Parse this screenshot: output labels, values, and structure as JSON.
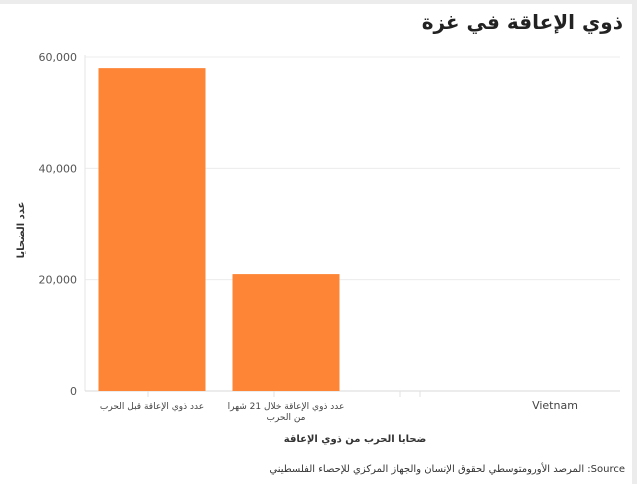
{
  "title": "ذوي الإعاقة في غزة",
  "source": "المرصد الأورومتوسطي لحقوق الإنسان والجهاز المركزي للإحصاء الفلسطيني :Source",
  "chart_data": {
    "type": "bar",
    "title": "ذوي الإعاقة في غزة",
    "categories": [
      "عدد ذوي الإعاقة قبل الحرب",
      "عدد ذوي الإعاقة خلال 21 شهرا من الحرب",
      "Vietnam"
    ],
    "category_lines": [
      [
        "عدد ذوي الإعاقة قبل الحرب"
      ],
      [
        "عدد ذوي الإعاقة خلال 21 شهرا",
        "من الحرب"
      ],
      [
        "Vietnam"
      ]
    ],
    "values": [
      58000,
      21000,
      null
    ],
    "xlabel": "ضحايا الحرب من ذوي الإعاقة",
    "ylabel": "عدد الضحايا",
    "ylim": [
      0,
      60000
    ],
    "yticks": [
      0,
      20000,
      40000,
      60000
    ],
    "ytick_labels": [
      "0",
      "20,000",
      "40,000",
      "60,000"
    ],
    "grid": true,
    "bar_color": "#fd8535"
  }
}
